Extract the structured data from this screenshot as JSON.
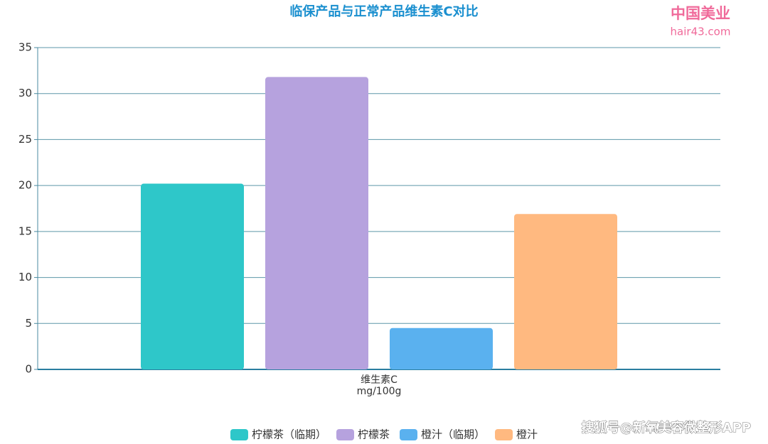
{
  "chart_data": {
    "type": "bar",
    "title": "临保产品与正常产品维生素C对比",
    "categories": [
      "维生素C"
    ],
    "x_unit": "mg/100g",
    "series": [
      {
        "name": "柠檬茶（临期）",
        "color": "#2ec7c9",
        "values": [
          20.2
        ]
      },
      {
        "name": "柠檬茶",
        "color": "#b6a2de",
        "values": [
          31.8
        ]
      },
      {
        "name": "橙汁（临期）",
        "color": "#5ab1ef",
        "values": [
          4.5
        ]
      },
      {
        "name": "橙汁",
        "color": "#ffb980",
        "values": [
          16.9
        ]
      }
    ],
    "ylim": [
      0,
      35
    ],
    "yticks": [
      0,
      5,
      10,
      15,
      20,
      25,
      30,
      35
    ],
    "grid": true,
    "legend": "bottom"
  },
  "watermarks": {
    "logo": "中国美业",
    "site": "hair43.com",
    "source": "搜狐号@新氧美容微整形APP"
  }
}
